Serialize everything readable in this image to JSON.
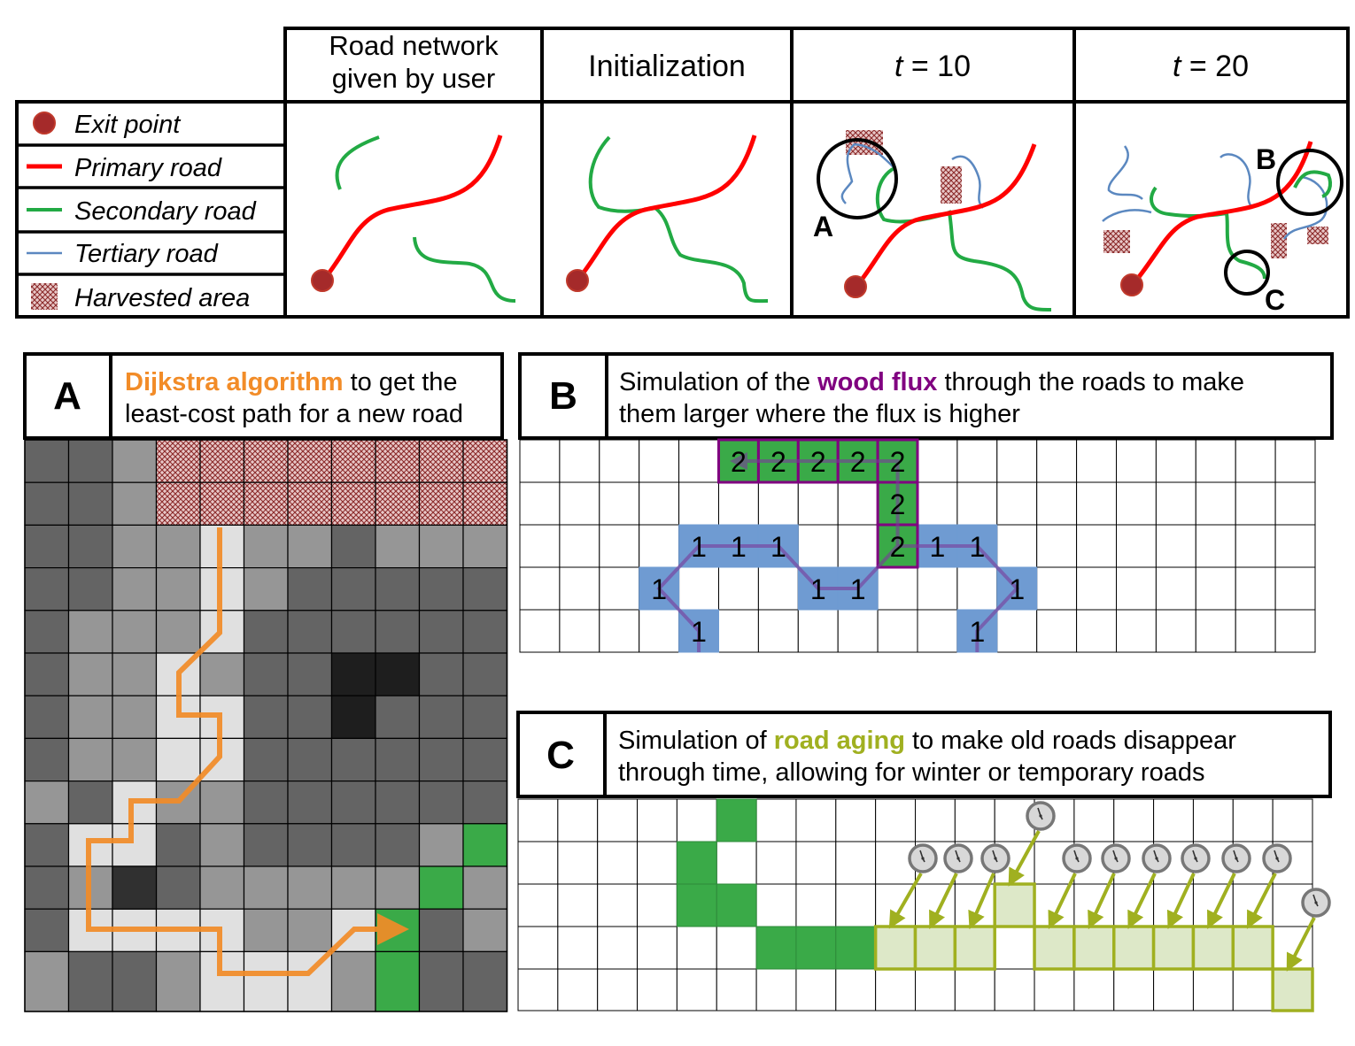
{
  "header": {
    "columns": [
      "Road network\ngiven by user",
      "Initialization",
      "t = 10",
      "t = 20"
    ]
  },
  "legend": [
    {
      "label": "Exit point",
      "icon": "exit-point-icon",
      "color": "#a52a2a"
    },
    {
      "label": "Primary road",
      "icon": "primary-road-icon",
      "color": "#ff0000"
    },
    {
      "label": "Secondary road",
      "icon": "secondary-road-icon",
      "color": "#22aa44"
    },
    {
      "label": "Tertiary road",
      "icon": "tertiary-road-icon",
      "color": "#5b88c0"
    },
    {
      "label": "Harvested area",
      "icon": "harvested-area-icon",
      "color": "#8b2a2a"
    }
  ],
  "callouts": {
    "a": "A",
    "b": "B",
    "c": "C"
  },
  "panelA": {
    "letter": "A",
    "highlight": "Dijkstra algorithm",
    "text1": " to get the",
    "text2": "least-cost path for a new road",
    "highlight_color": "#f28c28",
    "grid": [
      [
        1,
        1,
        2,
        9,
        9,
        9,
        9,
        9,
        9,
        9,
        9
      ],
      [
        1,
        1,
        2,
        9,
        9,
        9,
        9,
        9,
        9,
        9,
        9
      ],
      [
        1,
        1,
        2,
        2,
        3,
        2,
        2,
        1,
        2,
        2,
        2
      ],
      [
        1,
        1,
        2,
        2,
        3,
        2,
        1,
        1,
        1,
        1,
        1
      ],
      [
        1,
        2,
        2,
        2,
        3,
        1,
        1,
        1,
        1,
        1,
        1
      ],
      [
        1,
        2,
        2,
        3,
        2,
        1,
        1,
        0,
        0,
        1,
        1
      ],
      [
        1,
        2,
        2,
        3,
        3,
        1,
        1,
        0,
        1,
        1,
        1
      ],
      [
        1,
        2,
        2,
        3,
        3,
        1,
        1,
        1,
        1,
        1,
        1
      ],
      [
        2,
        1,
        3,
        2,
        2,
        1,
        1,
        1,
        1,
        1,
        1
      ],
      [
        1,
        3,
        3,
        1,
        2,
        1,
        1,
        1,
        1,
        2,
        7
      ],
      [
        1,
        2,
        0,
        1,
        2,
        2,
        2,
        2,
        2,
        7,
        2
      ],
      [
        1,
        3,
        3,
        3,
        3,
        2,
        2,
        3,
        7,
        1,
        2
      ],
      [
        2,
        1,
        1,
        2,
        3,
        3,
        3,
        2,
        7,
        1,
        1
      ]
    ]
  },
  "panelB": {
    "letter": "B",
    "text1a": "Simulation of the ",
    "highlight": "wood flux",
    "text1b": " through the roads to make",
    "text2": "them larger where the flux is higher",
    "highlight_color": "#800080",
    "green_cells": [
      {
        "c": 5,
        "r": 0,
        "v": "2"
      },
      {
        "c": 6,
        "r": 0,
        "v": "2"
      },
      {
        "c": 7,
        "r": 0,
        "v": "2"
      },
      {
        "c": 8,
        "r": 0,
        "v": "2"
      },
      {
        "c": 9,
        "r": 0,
        "v": "2"
      },
      {
        "c": 9,
        "r": 1,
        "v": "2"
      },
      {
        "c": 9,
        "r": 2,
        "v": "2"
      }
    ],
    "blue_cells": [
      {
        "c": 4,
        "r": 2,
        "v": "1"
      },
      {
        "c": 5,
        "r": 2,
        "v": "1"
      },
      {
        "c": 6,
        "r": 2,
        "v": "1"
      },
      {
        "c": 3,
        "r": 3,
        "v": "1"
      },
      {
        "c": 7,
        "r": 3,
        "v": "1"
      },
      {
        "c": 8,
        "r": 3,
        "v": "1"
      },
      {
        "c": 4,
        "r": 4,
        "v": "1"
      },
      {
        "c": 10,
        "r": 2,
        "v": "1"
      },
      {
        "c": 11,
        "r": 2,
        "v": "1"
      },
      {
        "c": 12,
        "r": 3,
        "v": "1"
      },
      {
        "c": 11,
        "r": 4,
        "v": "1"
      }
    ]
  },
  "panelC": {
    "letter": "C",
    "text1a": "Simulation of ",
    "highlight": "road aging",
    "text1b": " to make old roads disappear",
    "text2": "through time, allowing for winter or temporary roads",
    "highlight_color": "#a0b020"
  }
}
